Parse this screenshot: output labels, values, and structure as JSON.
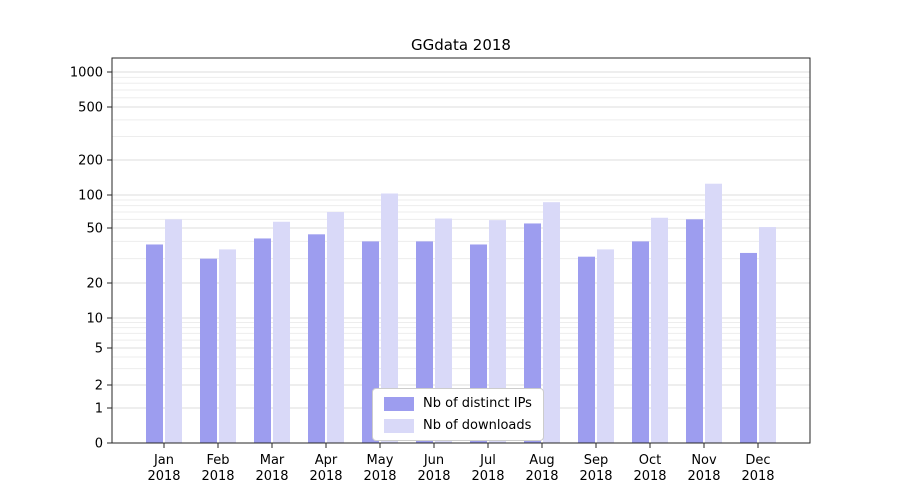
{
  "chart_data": {
    "type": "bar",
    "title": "GGdata 2018",
    "categories": [
      "Jan 2018",
      "Feb 2018",
      "Mar 2018",
      "Apr 2018",
      "May 2018",
      "Jun 2018",
      "Jul 2018",
      "Aug 2018",
      "Sep 2018",
      "Oct 2018",
      "Nov 2018",
      "Dec 2018"
    ],
    "series": [
      {
        "name": "Nb of distinct IPs",
        "color": "#9d9def",
        "values": [
          38,
          30,
          42,
          45,
          40,
          40,
          38,
          55,
          31,
          40,
          60,
          33
        ]
      },
      {
        "name": "Nb of downloads",
        "color": "#d9d9f8",
        "values": [
          60,
          35,
          57,
          70,
          103,
          61,
          59,
          86,
          35,
          62,
          125,
          51
        ]
      }
    ],
    "yscale": "symlog",
    "yticks": [
      0,
      1,
      2,
      5,
      10,
      20,
      50,
      100,
      200,
      500,
      1000
    ],
    "ylim": [
      0,
      1300
    ],
    "xlabel": "",
    "ylabel": "",
    "grid": true,
    "legend_position": "lower center"
  }
}
